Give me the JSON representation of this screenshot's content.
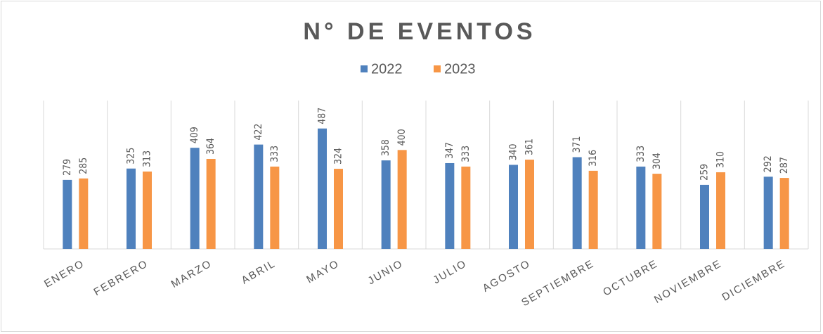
{
  "chart_data": {
    "type": "bar",
    "title": "N° DE EVENTOS",
    "categories": [
      "ENERO",
      "FEBRERO",
      "MARZO",
      "ABRIL",
      "MAYO",
      "JUNIO",
      "JULIO",
      "AGOSTO",
      "SEPTIEMBRE",
      "OCTUBRE",
      "NOVIEMBRE",
      "DICIEMBRE"
    ],
    "series": [
      {
        "name": "2022",
        "color": "#4f81bd",
        "values": [
          279,
          325,
          409,
          422,
          487,
          358,
          347,
          340,
          371,
          333,
          259,
          292
        ]
      },
      {
        "name": "2023",
        "color": "#f79646",
        "values": [
          285,
          313,
          364,
          333,
          324,
          400,
          333,
          361,
          316,
          304,
          310,
          287
        ]
      }
    ],
    "ylim": [
      0,
      600
    ],
    "legend": "top"
  }
}
